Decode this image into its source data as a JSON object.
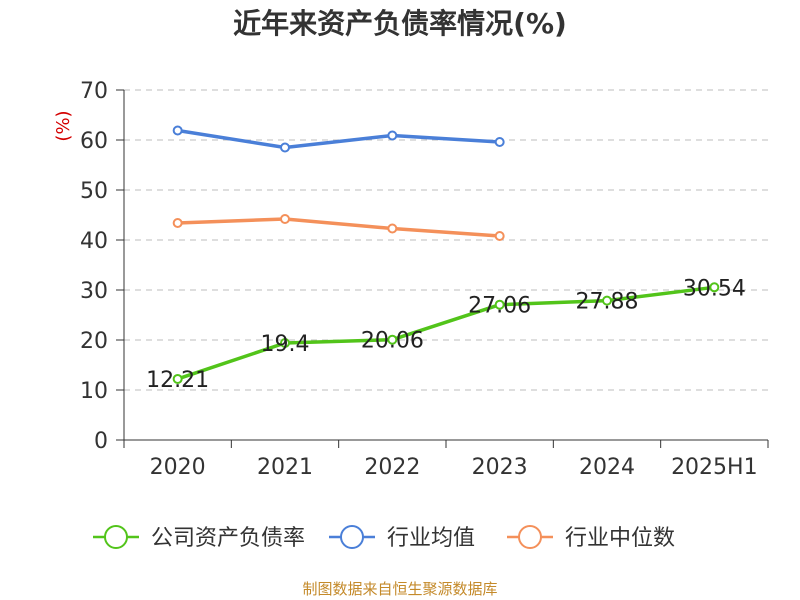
{
  "chart_data": {
    "type": "line",
    "title": "近年来资产负债率情况(%)",
    "y_unit": "(%)",
    "categories": [
      "2020",
      "2021",
      "2022",
      "2023",
      "2024",
      "2025H1"
    ],
    "ylim": [
      0,
      70
    ],
    "yticks": [
      0,
      10,
      20,
      30,
      40,
      50,
      60,
      70
    ],
    "grid": true,
    "legend_position": "bottom",
    "series": [
      {
        "name": "公司资产负债率",
        "color": "#52c41a",
        "values": [
          12.21,
          19.4,
          20.06,
          27.06,
          27.88,
          30.54
        ],
        "labels": [
          "12.21",
          "19.4",
          "20.06",
          "27.06",
          "27.88",
          "30.54"
        ],
        "show_labels": true
      },
      {
        "name": "行业均值",
        "color": "#4a7fd8",
        "values": [
          61.9,
          58.5,
          60.9,
          59.6,
          null,
          null
        ],
        "show_labels": false
      },
      {
        "name": "行业中位数",
        "color": "#f4905a",
        "values": [
          43.4,
          44.2,
          42.3,
          40.8,
          null,
          null
        ],
        "show_labels": false
      }
    ],
    "source": "制图数据来自恒生聚源数据库"
  }
}
